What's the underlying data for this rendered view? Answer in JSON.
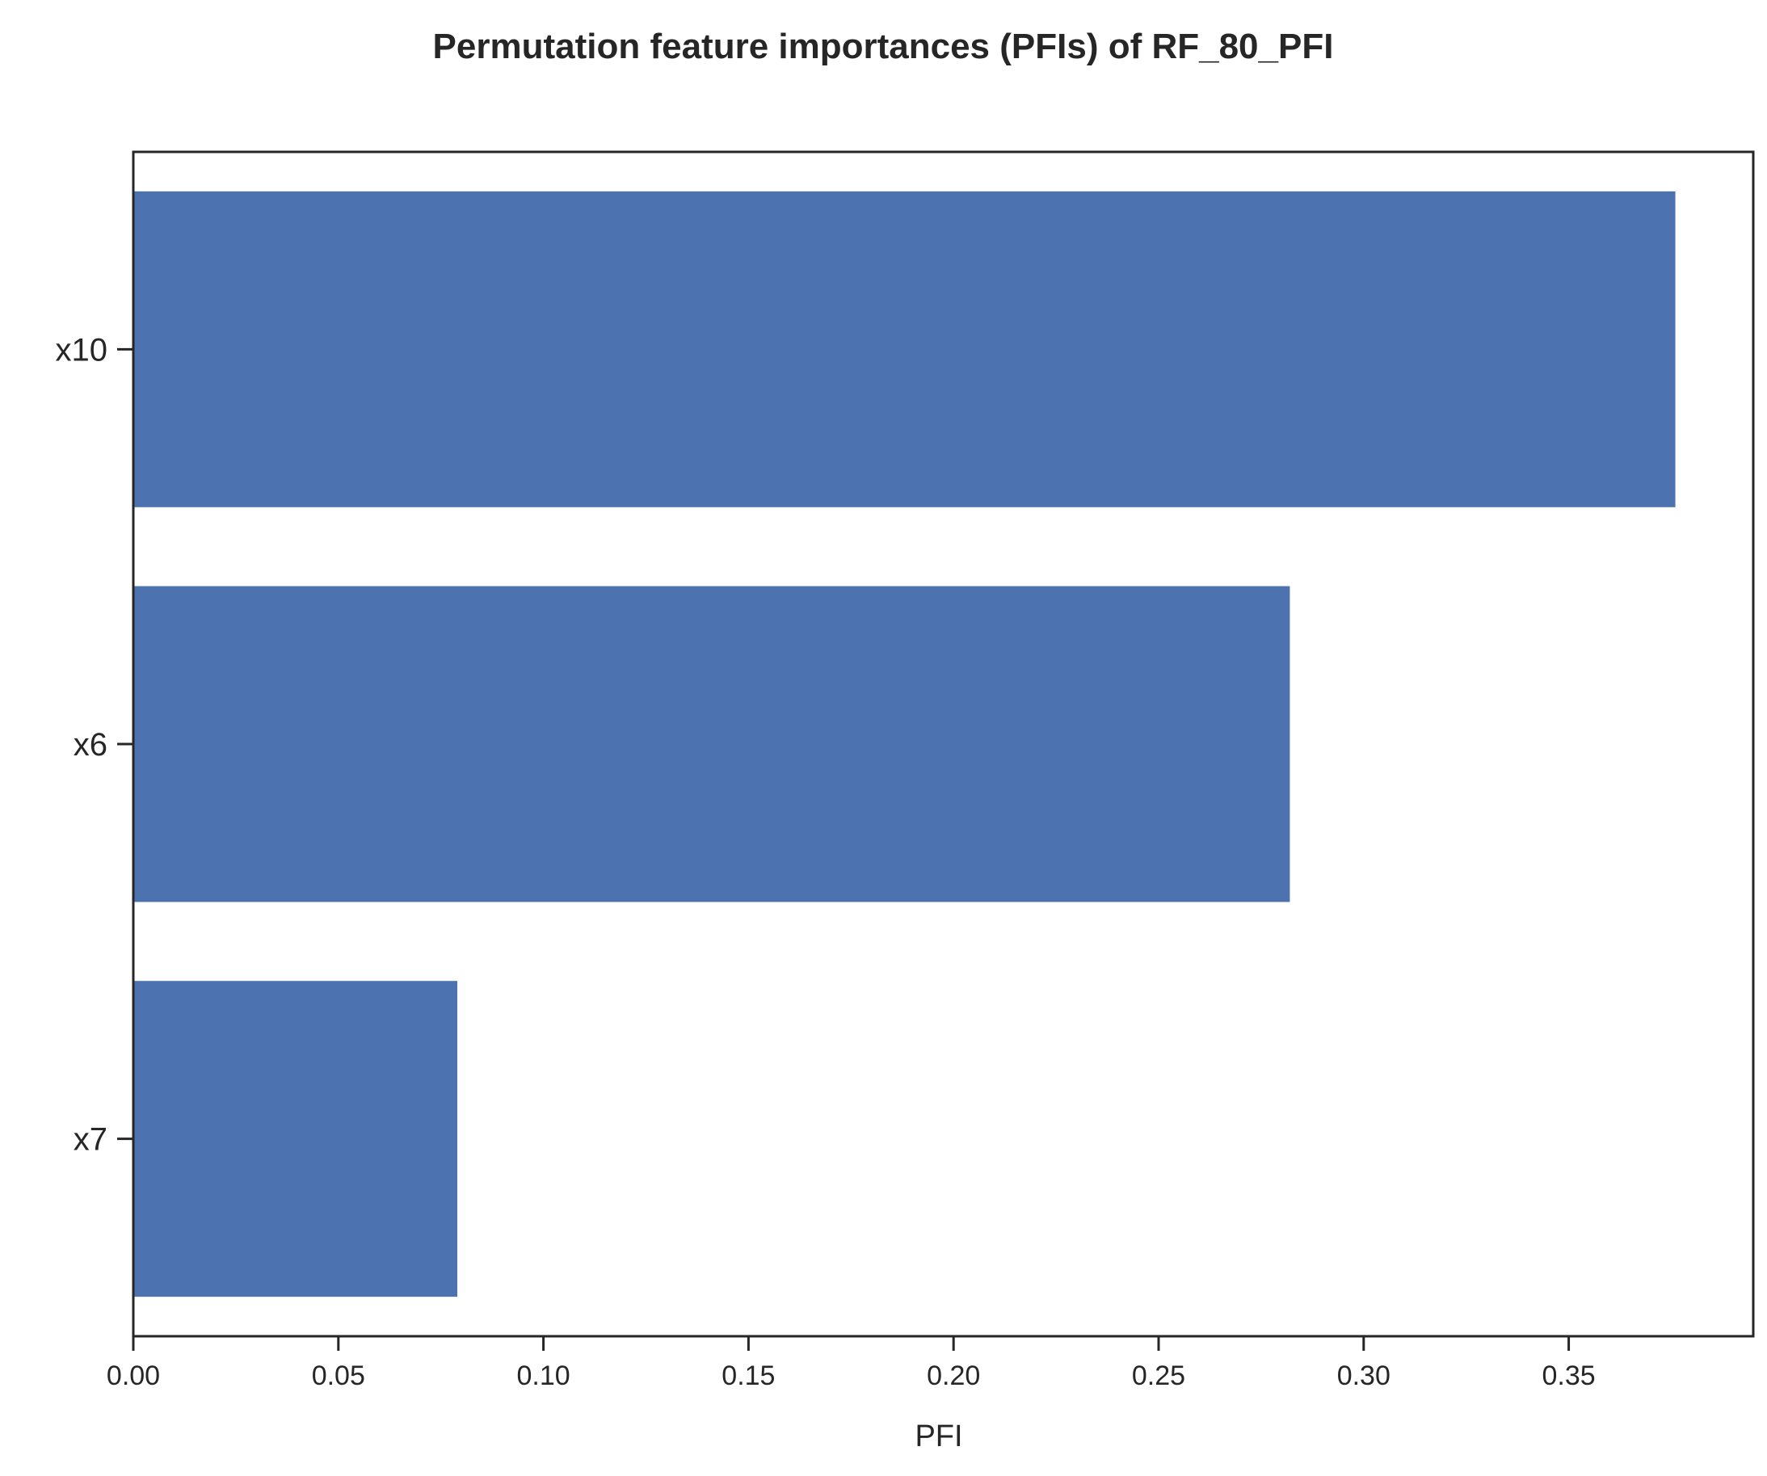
{
  "chart_data": {
    "type": "bar",
    "orientation": "horizontal",
    "title": "Permutation feature importances (PFIs) of RF_80_PFI",
    "xlabel": "PFI",
    "ylabel": "",
    "categories": [
      "x10",
      "x6",
      "x7"
    ],
    "values": [
      0.376,
      0.282,
      0.079
    ],
    "xlim": [
      0.0,
      0.395
    ],
    "xticks": [
      0.0,
      0.05,
      0.1,
      0.15,
      0.2,
      0.25,
      0.3,
      0.35
    ],
    "xtick_labels": [
      "0.00",
      "0.05",
      "0.10",
      "0.15",
      "0.20",
      "0.25",
      "0.30",
      "0.35"
    ],
    "grid": false,
    "legend": "none",
    "bar_color": "#4c72b0",
    "axis_color": "#262626"
  }
}
